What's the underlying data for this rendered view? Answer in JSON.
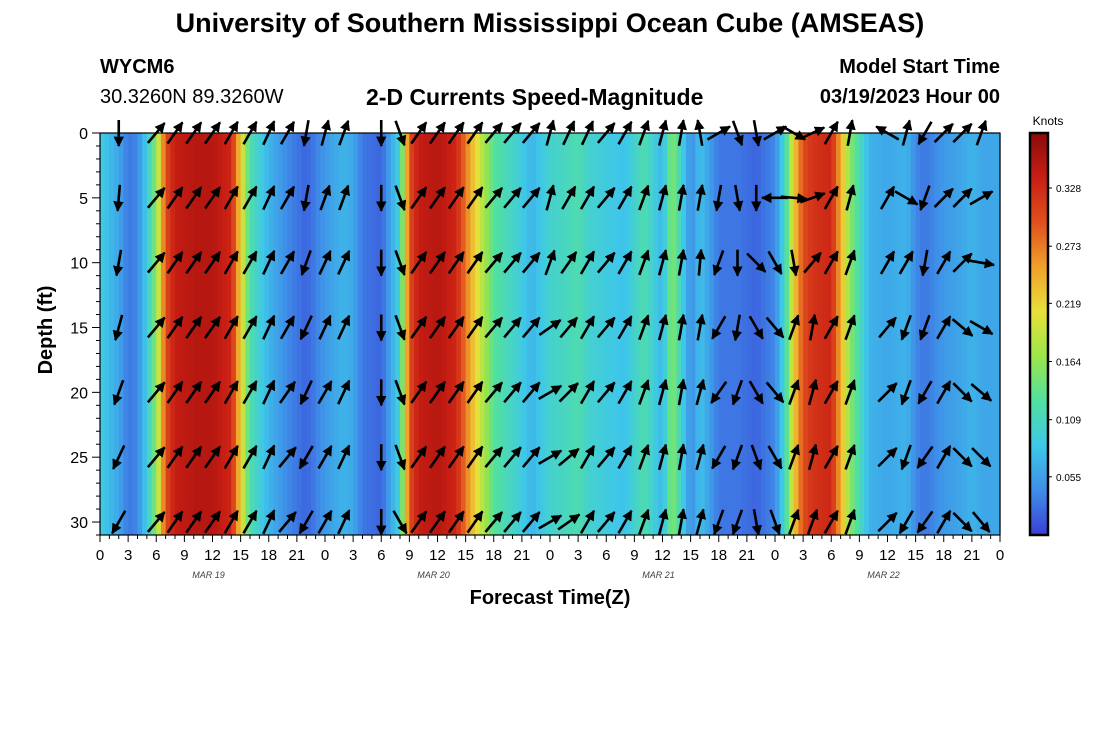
{
  "header": {
    "title_top": "University of Southern Mississippi Ocean Cube (AMSEAS)",
    "title_bottom": "University of Southern Mississippi Ocean Cube (AMSEAS)",
    "station": "WYCM6",
    "coords": "30.3260N  89.3260W",
    "subtitle": "2-D Currents Speed-Magnitude",
    "start_label": "Model Start Time",
    "start_value": "03/19/2023 Hour 00"
  },
  "chart_data": {
    "type": "heatmap",
    "title": "2-D Currents Speed-Magnitude",
    "xlabel": "Forecast Time(Z)",
    "ylabel": "Depth (ft)",
    "xlim": [
      0,
      96
    ],
    "ylim": [
      31,
      0
    ],
    "x_tick_values": [
      0,
      3,
      6,
      9,
      12,
      15,
      18,
      21,
      24,
      27,
      30,
      33,
      36,
      39,
      42,
      45,
      48,
      51,
      54,
      57,
      60,
      63,
      66,
      69,
      72,
      75,
      78,
      81,
      84,
      87,
      90,
      93,
      96
    ],
    "x_tick_labels": [
      "0",
      "3",
      "6",
      "9",
      "12",
      "15",
      "18",
      "21",
      "0",
      "3",
      "6",
      "9",
      "12",
      "15",
      "18",
      "21",
      "0",
      "3",
      "6",
      "9",
      "12",
      "15",
      "18",
      "21",
      "0",
      "3",
      "6",
      "9",
      "12",
      "15",
      "18",
      "21",
      "0"
    ],
    "x_date_labels": [
      {
        "label": "MAR 19",
        "hour": 12
      },
      {
        "label": "MAR 20",
        "hour": 36
      },
      {
        "label": "MAR 21",
        "hour": 60
      },
      {
        "label": "MAR 22",
        "hour": 84
      }
    ],
    "y_ticks": [
      0,
      5,
      10,
      15,
      20,
      25,
      30
    ],
    "colorbar": {
      "label": "Knots",
      "min": 0,
      "max": 0.38,
      "ticks": [
        0.055,
        0.109,
        0.164,
        0.219,
        0.273,
        0.328
      ],
      "tick_labels": [
        "0.055",
        "0.109",
        "0.164",
        "0.219",
        "0.273",
        "0.328"
      ],
      "colormap": [
        "#3a3fd6",
        "#3f8ee8",
        "#3ec8e8",
        "#52e0a0",
        "#9ae64a",
        "#e8e03a",
        "#f0a02a",
        "#e0501e",
        "#c81e14",
        "#8a0a0a"
      ]
    },
    "speed_by_hour": {
      "hours": [
        0,
        2,
        3,
        4,
        5,
        6,
        7,
        8,
        10,
        12,
        14,
        15,
        16,
        18,
        20,
        21,
        22,
        24,
        26,
        27,
        28,
        30,
        32,
        33,
        34,
        36,
        38,
        40,
        42,
        45,
        46,
        48,
        50,
        51,
        52,
        54,
        56,
        57,
        58,
        60,
        61,
        62,
        63,
        64,
        66,
        68,
        70,
        72,
        73,
        74,
        75,
        76,
        78,
        80,
        82,
        84,
        86,
        87,
        88,
        90,
        92,
        93,
        94,
        96
      ],
      "knots": [
        0.09,
        0.06,
        0.03,
        0.04,
        0.09,
        0.16,
        0.3,
        0.34,
        0.35,
        0.35,
        0.33,
        0.22,
        0.12,
        0.07,
        0.04,
        0.03,
        0.02,
        0.05,
        0.07,
        0.06,
        0.03,
        0.02,
        0.1,
        0.3,
        0.34,
        0.35,
        0.33,
        0.22,
        0.13,
        0.09,
        0.07,
        0.1,
        0.11,
        0.12,
        0.1,
        0.09,
        0.08,
        0.1,
        0.12,
        0.07,
        0.16,
        0.1,
        0.04,
        0.08,
        0.03,
        0.03,
        0.02,
        0.04,
        0.1,
        0.22,
        0.3,
        0.32,
        0.33,
        0.16,
        0.07,
        0.06,
        0.07,
        0.04,
        0.03,
        0.05,
        0.06,
        0.07,
        0.06,
        0.06
      ]
    },
    "current_vectors": {
      "depths": [
        0,
        5,
        10,
        15,
        20,
        25,
        30
      ],
      "rows": [
        {
          "hour": 2,
          "directions": [
            180,
            185,
            190,
            195,
            200,
            205,
            210
          ]
        },
        {
          "hour": 6,
          "directions": [
            40,
            40,
            40,
            40,
            40,
            40,
            40
          ]
        },
        {
          "hour": 8,
          "directions": [
            35,
            35,
            35,
            35,
            35,
            35,
            35
          ]
        },
        {
          "hour": 10,
          "directions": [
            35,
            35,
            35,
            35,
            35,
            35,
            35
          ]
        },
        {
          "hour": 12,
          "directions": [
            35,
            35,
            35,
            35,
            35,
            35,
            35
          ]
        },
        {
          "hour": 14,
          "directions": [
            30,
            30,
            30,
            30,
            30,
            30,
            30
          ]
        },
        {
          "hour": 16,
          "directions": [
            30,
            30,
            30,
            30,
            30,
            30,
            30
          ]
        },
        {
          "hour": 18,
          "directions": [
            25,
            25,
            25,
            25,
            25,
            25,
            25
          ]
        },
        {
          "hour": 20,
          "directions": [
            30,
            30,
            30,
            30,
            35,
            40,
            40
          ]
        },
        {
          "hour": 22,
          "directions": [
            190,
            190,
            200,
            205,
            205,
            210,
            210
          ]
        },
        {
          "hour": 24,
          "directions": [
            15,
            20,
            25,
            25,
            30,
            30,
            30
          ]
        },
        {
          "hour": 26,
          "directions": [
            20,
            20,
            25,
            25,
            25,
            25,
            25
          ]
        },
        {
          "hour": 30,
          "directions": [
            180,
            180,
            180,
            180,
            180,
            180,
            180
          ]
        },
        {
          "hour": 32,
          "directions": [
            160,
            160,
            160,
            160,
            160,
            160,
            150
          ]
        },
        {
          "hour": 34,
          "directions": [
            35,
            35,
            35,
            35,
            35,
            35,
            35
          ]
        },
        {
          "hour": 36,
          "directions": [
            35,
            35,
            35,
            35,
            35,
            35,
            35
          ]
        },
        {
          "hour": 38,
          "directions": [
            35,
            35,
            35,
            35,
            35,
            35,
            35
          ]
        },
        {
          "hour": 40,
          "directions": [
            35,
            35,
            35,
            35,
            35,
            35,
            35
          ]
        },
        {
          "hour": 42,
          "directions": [
            40,
            40,
            40,
            40,
            40,
            40,
            40
          ]
        },
        {
          "hour": 44,
          "directions": [
            40,
            40,
            40,
            40,
            40,
            40,
            40
          ]
        },
        {
          "hour": 46,
          "directions": [
            40,
            40,
            40,
            40,
            40,
            40,
            40
          ]
        },
        {
          "hour": 48,
          "directions": [
            15,
            15,
            20,
            55,
            60,
            60,
            60
          ]
        },
        {
          "hour": 50,
          "directions": [
            25,
            30,
            35,
            40,
            45,
            50,
            55
          ]
        },
        {
          "hour": 52,
          "directions": [
            25,
            30,
            30,
            30,
            30,
            30,
            30
          ]
        },
        {
          "hour": 54,
          "directions": [
            40,
            40,
            40,
            40,
            40,
            40,
            40
          ]
        },
        {
          "hour": 56,
          "directions": [
            30,
            30,
            30,
            30,
            30,
            30,
            30
          ]
        },
        {
          "hour": 58,
          "directions": [
            20,
            20,
            20,
            20,
            20,
            20,
            20
          ]
        },
        {
          "hour": 60,
          "directions": [
            15,
            15,
            15,
            15,
            15,
            15,
            15
          ]
        },
        {
          "hour": 62,
          "directions": [
            10,
            10,
            10,
            10,
            10,
            10,
            10
          ]
        },
        {
          "hour": 64,
          "directions": [
            350,
            10,
            5,
            10,
            15,
            15,
            15
          ]
        },
        {
          "hour": 66,
          "directions": [
            60,
            190,
            200,
            210,
            215,
            210,
            200
          ]
        },
        {
          "hour": 68,
          "directions": [
            160,
            170,
            180,
            190,
            200,
            200,
            200
          ]
        },
        {
          "hour": 70,
          "directions": [
            170,
            180,
            135,
            150,
            150,
            160,
            170
          ]
        },
        {
          "hour": 72,
          "directions": [
            60,
            270,
            150,
            140,
            140,
            150,
            160
          ]
        },
        {
          "hour": 74,
          "directions": [
            120,
            95,
            170,
            20,
            20,
            20,
            20
          ]
        },
        {
          "hour": 76,
          "directions": [
            65,
            70,
            40,
            10,
            15,
            15,
            20
          ]
        },
        {
          "hour": 78,
          "directions": [
            30,
            30,
            30,
            30,
            30,
            30,
            30
          ]
        },
        {
          "hour": 80,
          "directions": [
            10,
            15,
            20,
            20,
            20,
            20,
            20
          ]
        },
        {
          "hour": 84,
          "directions": [
            300,
            30,
            30,
            40,
            45,
            45,
            45
          ]
        },
        {
          "hour": 86,
          "directions": [
            15,
            120,
            30,
            200,
            200,
            200,
            210
          ]
        },
        {
          "hour": 88,
          "directions": [
            210,
            200,
            190,
            200,
            210,
            215,
            215
          ]
        },
        {
          "hour": 90,
          "directions": [
            45,
            45,
            30,
            30,
            30,
            30,
            30
          ]
        },
        {
          "hour": 92,
          "directions": [
            45,
            45,
            45,
            130,
            135,
            135,
            135
          ]
        },
        {
          "hour": 94,
          "directions": [
            20,
            60,
            100,
            120,
            130,
            135,
            140
          ]
        }
      ]
    }
  }
}
